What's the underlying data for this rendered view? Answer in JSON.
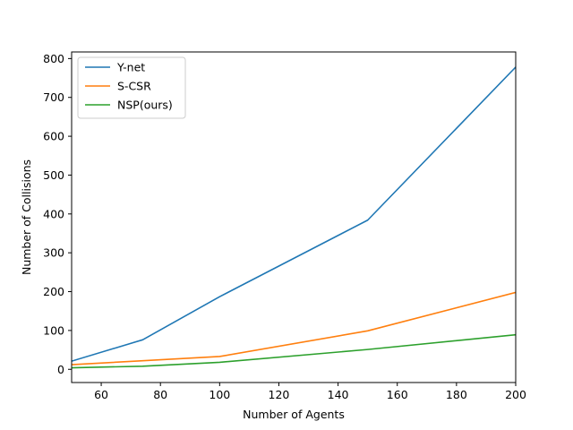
{
  "chart_data": {
    "type": "line",
    "title": "",
    "xlabel": "Number of Agents",
    "ylabel": "Number of Collisions",
    "xlim": [
      50,
      200
    ],
    "ylim": [
      -34,
      817
    ],
    "xticks": [
      60,
      80,
      100,
      120,
      140,
      160,
      180,
      200
    ],
    "yticks": [
      0,
      100,
      200,
      300,
      400,
      500,
      600,
      700,
      800
    ],
    "grid": false,
    "legend_position": "top-left",
    "series": [
      {
        "name": "Y-net",
        "color": "#1f77b4",
        "x": [
          50,
          74,
          100,
          150,
          200
        ],
        "y": [
          21,
          76,
          187,
          384,
          778
        ]
      },
      {
        "name": "S-CSR",
        "color": "#ff7f0e",
        "x": [
          50,
          74,
          100,
          150,
          200
        ],
        "y": [
          12,
          22,
          33,
          99,
          198
        ]
      },
      {
        "name": "NSP(ours)",
        "color": "#2ca02c",
        "x": [
          50,
          74,
          100,
          150,
          200
        ],
        "y": [
          4,
          8,
          18,
          51,
          89
        ]
      }
    ]
  }
}
